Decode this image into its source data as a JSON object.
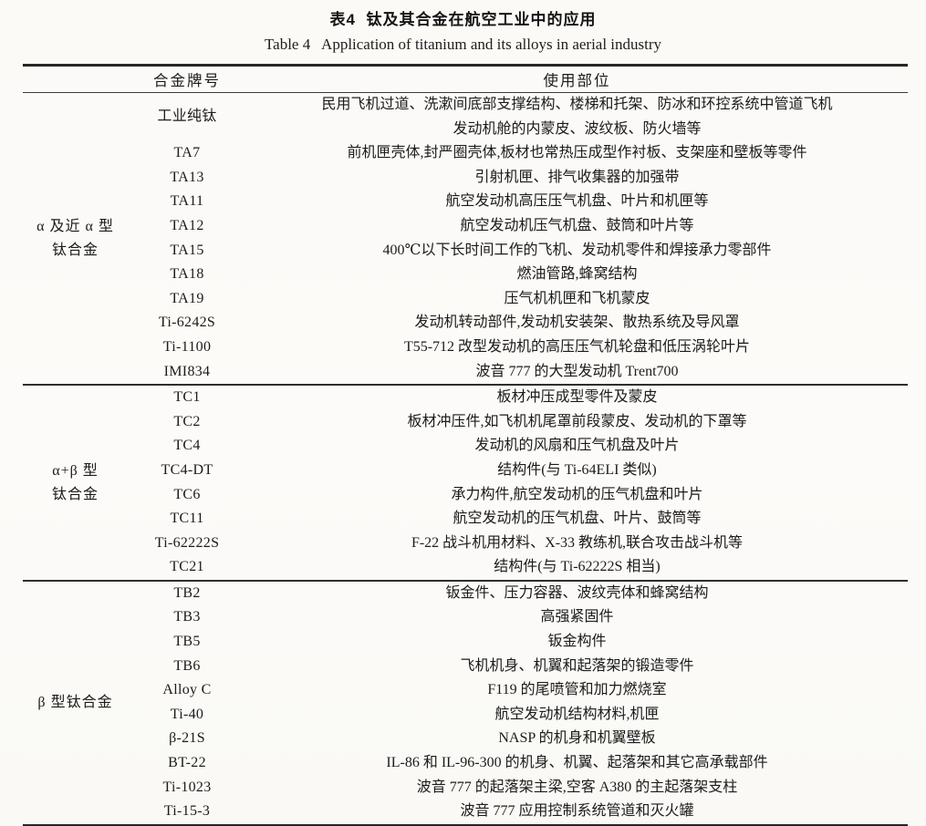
{
  "page": {
    "title_zh": "表4  钛及其合金在航空工业中的应用",
    "title_en": "Table 4   Application of titanium and its alloys in aerial industry"
  },
  "colors": {
    "background": "#fbfaf7",
    "text": "#1b1b1b",
    "rule": "#262626"
  },
  "table": {
    "headers": {
      "alloy": "合金牌号",
      "usage": "使用部位"
    },
    "sections": [
      {
        "category_lines": [
          "α 及近 α 型",
          "钛合金"
        ],
        "rows": [
          {
            "alloy": "工业纯钛",
            "usage_lines": [
              "民用飞机过道、洗漱间底部支撑结构、楼梯和托架、防冰和环控系统中管道飞机",
              "发动机舱的内蒙皮、波纹板、防火墙等"
            ]
          },
          {
            "alloy": "TA7",
            "usage_lines": [
              "前机匣壳体,封严圈壳体,板材也常热压成型作衬板、支架座和壁板等零件"
            ]
          },
          {
            "alloy": "TA13",
            "usage_lines": [
              "引射机匣、排气收集器的加强带"
            ]
          },
          {
            "alloy": "TA11",
            "usage_lines": [
              "航空发动机高压压气机盘、叶片和机匣等"
            ]
          },
          {
            "alloy": "TA12",
            "usage_lines": [
              "航空发动机压气机盘、鼓筒和叶片等"
            ]
          },
          {
            "alloy": "TA15",
            "usage_lines": [
              "400℃以下长时间工作的飞机、发动机零件和焊接承力零部件"
            ]
          },
          {
            "alloy": "TA18",
            "usage_lines": [
              "燃油管路,蜂窝结构"
            ]
          },
          {
            "alloy": "TA19",
            "usage_lines": [
              "压气机机匣和飞机蒙皮"
            ]
          },
          {
            "alloy": "Ti-6242S",
            "usage_lines": [
              "发动机转动部件,发动机安装架、散热系统及导风罩"
            ]
          },
          {
            "alloy": "Ti-1100",
            "usage_lines": [
              "T55-712 改型发动机的高压压气机轮盘和低压涡轮叶片"
            ]
          },
          {
            "alloy": "IMI834",
            "usage_lines": [
              "波音 777 的大型发动机 Trent700"
            ]
          }
        ]
      },
      {
        "category_lines": [
          "α+β 型",
          "钛合金"
        ],
        "rows": [
          {
            "alloy": "TC1",
            "usage_lines": [
              "板材冲压成型零件及蒙皮"
            ]
          },
          {
            "alloy": "TC2",
            "usage_lines": [
              "板材冲压件,如飞机机尾罩前段蒙皮、发动机的下罩等"
            ]
          },
          {
            "alloy": "TC4",
            "usage_lines": [
              "发动机的风扇和压气机盘及叶片"
            ]
          },
          {
            "alloy": "TC4-DT",
            "usage_lines": [
              "结构件(与 Ti-64ELI 类似)"
            ]
          },
          {
            "alloy": "TC6",
            "usage_lines": [
              "承力构件,航空发动机的压气机盘和叶片"
            ]
          },
          {
            "alloy": "TC11",
            "usage_lines": [
              "航空发动机的压气机盘、叶片、鼓筒等"
            ]
          },
          {
            "alloy": "Ti-62222S",
            "usage_lines": [
              "F-22 战斗机用材料、X-33 教练机,联合攻击战斗机等"
            ]
          },
          {
            "alloy": "TC21",
            "usage_lines": [
              "结构件(与 Ti-62222S 相当)"
            ]
          }
        ]
      },
      {
        "category_lines": [
          "β 型钛合金"
        ],
        "rows": [
          {
            "alloy": "TB2",
            "usage_lines": [
              "钣金件、压力容器、波纹壳体和蜂窝结构"
            ]
          },
          {
            "alloy": "TB3",
            "usage_lines": [
              "高强紧固件"
            ]
          },
          {
            "alloy": "TB5",
            "usage_lines": [
              "钣金构件"
            ]
          },
          {
            "alloy": "TB6",
            "usage_lines": [
              "飞机机身、机翼和起落架的锻造零件"
            ]
          },
          {
            "alloy": "Alloy C",
            "usage_lines": [
              "F119 的尾喷管和加力燃烧室"
            ]
          },
          {
            "alloy": "Ti-40",
            "usage_lines": [
              "航空发动机结构材料,机匣"
            ]
          },
          {
            "alloy": "β-21S",
            "usage_lines": [
              "NASP 的机身和机翼壁板"
            ]
          },
          {
            "alloy": "BT-22",
            "usage_lines": [
              "IL-86 和 IL-96-300 的机身、机翼、起落架和其它高承载部件"
            ]
          },
          {
            "alloy": "Ti-1023",
            "usage_lines": [
              "波音 777 的起落架主梁,空客 A380 的主起落架支柱"
            ]
          },
          {
            "alloy": "Ti-15-3",
            "usage_lines": [
              "波音 777 应用控制系统管道和灭火罐"
            ]
          }
        ]
      }
    ]
  }
}
